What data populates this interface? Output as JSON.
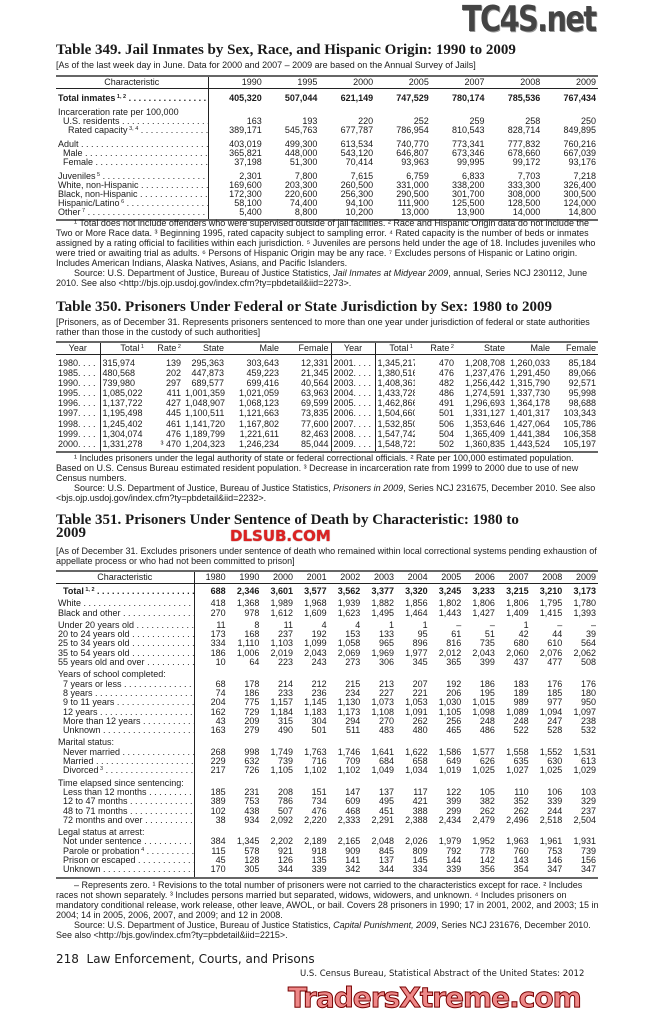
{
  "watermarks": {
    "top": "TC4S.net",
    "middle": "DLSUB.COM",
    "bottom": "TradersXtreme.com"
  },
  "t349": {
    "title": "Table 349. Jail Inmates by Sex, Race, and Hispanic Origin: 1990 to 2009",
    "subtitle": "[As of the last week day in June. Data for 2000 and 2007 – 2009 are based on the Annual Survey of Jails]",
    "columns": [
      "Characteristic",
      "1990",
      "1995",
      "2000",
      "2005",
      "2007",
      "2008",
      "2009"
    ],
    "groups": [
      [
        {
          "label": "Total inmates",
          "sup": "1, 2",
          "bold": true,
          "values": [
            "405,320",
            "507,044",
            "621,149",
            "747,529",
            "780,174",
            "785,536",
            "767,434"
          ]
        }
      ],
      [
        {
          "label": "Incarceration rate per 100,000",
          "values": []
        },
        {
          "label": "U.S. residents",
          "indent": 1,
          "values": [
            "163",
            "193",
            "220",
            "252",
            "259",
            "258",
            "250"
          ]
        },
        {
          "label": "Rated capacity",
          "sup": "3, 4",
          "indent": 2,
          "values": [
            "389,171",
            "545,763",
            "677,787",
            "786,954",
            "810,543",
            "828,714",
            "849,895"
          ]
        }
      ],
      [
        {
          "label": "Adult",
          "values": [
            "403,019",
            "499,300",
            "613,534",
            "740,770",
            "773,341",
            "777,832",
            "760,216"
          ]
        },
        {
          "label": "Male",
          "indent": 1,
          "values": [
            "365,821",
            "448,000",
            "543,120",
            "646,807",
            "673,346",
            "678,660",
            "667,039"
          ]
        },
        {
          "label": "Female",
          "indent": 1,
          "values": [
            "37,198",
            "51,300",
            "70,414",
            "93,963",
            "99,995",
            "99,172",
            "93,176"
          ]
        }
      ],
      [
        {
          "label": "Juveniles",
          "sup": "5",
          "values": [
            "2,301",
            "7,800",
            "7,615",
            "6,759",
            "6,833",
            "7,703",
            "7,218"
          ]
        },
        {
          "label": "White, non-Hispanic",
          "values": [
            "169,600",
            "203,300",
            "260,500",
            "331,000",
            "338,200",
            "333,300",
            "326,400"
          ]
        },
        {
          "label": "Black, non-Hispanic",
          "values": [
            "172,300",
            "220,600",
            "256,300",
            "290,500",
            "301,700",
            "308,000",
            "300,500"
          ]
        },
        {
          "label": "Hispanic/Latino",
          "sup": "6",
          "values": [
            "58,100",
            "74,400",
            "94,100",
            "111,900",
            "125,500",
            "128,500",
            "124,000"
          ]
        },
        {
          "label": "Other",
          "sup": "7",
          "values": [
            "5,400",
            "8,800",
            "10,200",
            "13,000",
            "13,900",
            "14,000",
            "14,800"
          ]
        }
      ]
    ],
    "footnotes": "¹ Total does not include offenders who were supervised outside of jail facilities. ² Race and Hispanic Origin data do not include the Two or More Race data. ³ Beginning 1995, rated capacity subject to sampling error. ⁴ Rated capacity is the number of beds or inmates assigned by a rating official to facilities within each jurisdiction. ⁵ Juveniles are persons held under the age of 18. Includes juveniles who were tried or awaiting trial as adults. ⁶ Persons of Hispanic Origin may be any race. ⁷ Excludes persons of Hispanic or Latino origin. Includes American Indians, Alaska Natives, Asians, and Pacific Islanders.",
    "source_pre": "Source: U.S. Department of Justice, Bureau of Justice Statistics, ",
    "source_pub": "Jail Inmates at Midyear 2009",
    "source_post": ", annual, Series NCJ 230112, June 2010. See also <http://bjs.ojp.usdoj.gov/index.cfm?ty=pbdetail&iid=2273>."
  },
  "t350": {
    "title": "Table 350. Prisoners Under Federal or State Jurisdiction by Sex: 1980 to 2009",
    "subtitle": "[Prisoners, as of December 31. Represents prisoners sentenced to more than one year under jurisdiction of federal or state authorities rather than those in the custody of such authorities]",
    "columns": [
      {
        "label": "Year"
      },
      {
        "label": "Total",
        "sup": "1"
      },
      {
        "label": "Rate",
        "sup": "2"
      },
      {
        "label": "State"
      },
      {
        "label": "Male"
      },
      {
        "label": "Female"
      }
    ],
    "left": [
      [
        "1980",
        "315,974",
        "139",
        "295,363",
        "303,643",
        "12,331"
      ],
      [
        "1985",
        "480,568",
        "202",
        "447,873",
        "459,223",
        "21,345"
      ],
      [
        "1990",
        "739,980",
        "297",
        "689,577",
        "699,416",
        "40,564"
      ],
      [
        "1995",
        "1,085,022",
        "411",
        "1,001,359",
        "1,021,059",
        "63,963"
      ],
      [
        "1996",
        "1,137,722",
        "427",
        "1,048,907",
        "1,068,123",
        "69,599"
      ],
      [
        "1997",
        "1,195,498",
        "445",
        "1,100,511",
        "1,121,663",
        "73,835"
      ],
      [
        "1998",
        "1,245,402",
        "461",
        "1,141,720",
        "1,167,802",
        "77,600"
      ],
      [
        "1999",
        "1,304,074",
        "476",
        "1,189,799",
        "1,221,611",
        "82,463"
      ],
      [
        "2000",
        "1,331,278",
        "³ 470",
        "1,204,323",
        "1,246,234",
        "85,044"
      ]
    ],
    "right": [
      [
        "2001",
        "1,345,217",
        "470",
        "1,208,708",
        "1,260,033",
        "85,184"
      ],
      [
        "2002",
        "1,380,516",
        "476",
        "1,237,476",
        "1,291,450",
        "89,066"
      ],
      [
        "2003",
        "1,408,361",
        "482",
        "1,256,442",
        "1,315,790",
        "92,571"
      ],
      [
        "2004",
        "1,433,728",
        "486",
        "1,274,591",
        "1,337,730",
        "95,998"
      ],
      [
        "2005",
        "1,462,866",
        "491",
        "1,296,693",
        "1,364,178",
        "98,688"
      ],
      [
        "2006",
        "1,504,660",
        "501",
        "1,331,127",
        "1,401,317",
        "103,343"
      ],
      [
        "2007",
        "1,532,850",
        "506",
        "1,353,646",
        "1,427,064",
        "105,786"
      ],
      [
        "2008",
        "1,547,742",
        "504",
        "1,365,409",
        "1,441,384",
        "106,358"
      ],
      [
        "2009",
        "1,548,721",
        "502",
        "1,360,835",
        "1,443,524",
        "105,197"
      ]
    ],
    "footnotes": "¹ Includes prisoners under the legal authority of state or federal correctional officials. ² Rate per 100,000 estimated population. Based on U.S. Census Bureau estimated resident population. ³ Decrease in incarceration rate from 1999 to 2000 due to use of new Census numbers.",
    "source_pre": "Source: U.S. Department of Justice, Bureau of Justice Statistics, ",
    "source_pub": "Prisoners in 2009",
    "source_post": ", Series NCJ 231675, December 2010. See also <bjs.ojp.usdoj.gov/index.cfm?ty=pbdetail&iid=2232>."
  },
  "t351": {
    "title": "Table 351. Prisoners Under Sentence of Death by Characteristic: 1980 to 2009",
    "subtitle": "[As of December 31. Excludes prisoners under sentence of death who remained within local correctional systems pending exhaustion of appellate process or who had not been committed to prison]",
    "columns": [
      "Characteristic",
      "1980",
      "1990",
      "2000",
      "2001",
      "2002",
      "2003",
      "2004",
      "2005",
      "2006",
      "2007",
      "2008",
      "2009"
    ],
    "groups": [
      [
        {
          "label": "Total",
          "sup": "1, 2",
          "bold": true,
          "indent": 1,
          "values": [
            "688",
            "2,346",
            "3,601",
            "3,577",
            "3,562",
            "3,377",
            "3,320",
            "3,245",
            "3,233",
            "3,215",
            "3,210",
            "3,173"
          ]
        }
      ],
      [
        {
          "label": "White",
          "values": [
            "418",
            "1,368",
            "1,989",
            "1,968",
            "1,939",
            "1,882",
            "1,856",
            "1,802",
            "1,806",
            "1,806",
            "1,795",
            "1,780"
          ]
        },
        {
          "label": "Black and other",
          "values": [
            "270",
            "978",
            "1,612",
            "1,609",
            "1,623",
            "1,495",
            "1,464",
            "1,443",
            "1,427",
            "1,409",
            "1,415",
            "1,393"
          ]
        }
      ],
      [
        {
          "label": "Under 20 years old",
          "values": [
            "11",
            "8",
            "11",
            "4",
            "4",
            "1",
            "1",
            "–",
            "–",
            "1",
            "–",
            "–"
          ]
        },
        {
          "label": "20 to 24 years old",
          "values": [
            "173",
            "168",
            "237",
            "192",
            "153",
            "133",
            "95",
            "61",
            "51",
            "42",
            "44",
            "39"
          ]
        },
        {
          "label": "25 to 34 years old",
          "values": [
            "334",
            "1,110",
            "1,103",
            "1,099",
            "1,058",
            "965",
            "896",
            "816",
            "735",
            "680",
            "610",
            "564"
          ]
        },
        {
          "label": "35 to 54 years old",
          "values": [
            "186",
            "1,006",
            "2,019",
            "2,043",
            "2,069",
            "1,969",
            "1,977",
            "2,012",
            "2,043",
            "2,060",
            "2,076",
            "2,062"
          ]
        },
        {
          "label": "55 years old and over",
          "values": [
            "10",
            "64",
            "223",
            "243",
            "273",
            "306",
            "345",
            "365",
            "399",
            "437",
            "477",
            "508"
          ]
        }
      ],
      [
        {
          "label": "Years of school completed:",
          "values": []
        },
        {
          "label": "7 years or less",
          "indent": 1,
          "values": [
            "68",
            "178",
            "214",
            "212",
            "215",
            "213",
            "207",
            "192",
            "186",
            "183",
            "176",
            "176"
          ]
        },
        {
          "label": "8 years",
          "indent": 1,
          "values": [
            "74",
            "186",
            "233",
            "236",
            "234",
            "227",
            "221",
            "206",
            "195",
            "189",
            "185",
            "180"
          ]
        },
        {
          "label": "9 to 11 years",
          "indent": 1,
          "values": [
            "204",
            "775",
            "1,157",
            "1,145",
            "1,130",
            "1,073",
            "1,053",
            "1,030",
            "1,015",
            "989",
            "977",
            "950"
          ]
        },
        {
          "label": "12 years",
          "indent": 1,
          "values": [
            "162",
            "729",
            "1,184",
            "1,183",
            "1,173",
            "1,108",
            "1,091",
            "1,105",
            "1,098",
            "1,089",
            "1,094",
            "1,097"
          ]
        },
        {
          "label": "More than 12 years",
          "indent": 1,
          "values": [
            "43",
            "209",
            "315",
            "304",
            "294",
            "270",
            "262",
            "256",
            "248",
            "248",
            "247",
            "238"
          ]
        },
        {
          "label": "Unknown",
          "indent": 1,
          "values": [
            "163",
            "279",
            "490",
            "501",
            "511",
            "483",
            "480",
            "465",
            "486",
            "522",
            "528",
            "532"
          ]
        }
      ],
      [
        {
          "label": "Marital status:",
          "values": []
        },
        {
          "label": "Never married",
          "indent": 1,
          "values": [
            "268",
            "998",
            "1,749",
            "1,763",
            "1,746",
            "1,641",
            "1,622",
            "1,586",
            "1,577",
            "1,558",
            "1,552",
            "1,531"
          ]
        },
        {
          "label": "Married",
          "indent": 1,
          "values": [
            "229",
            "632",
            "739",
            "716",
            "709",
            "684",
            "658",
            "649",
            "626",
            "635",
            "630",
            "613"
          ]
        },
        {
          "label": "Divorced",
          "sup": "3",
          "indent": 1,
          "values": [
            "217",
            "726",
            "1,105",
            "1,102",
            "1,102",
            "1,049",
            "1,034",
            "1,019",
            "1,025",
            "1,027",
            "1,025",
            "1,029"
          ]
        }
      ],
      [
        {
          "label": "Time elapsed since sentencing:",
          "values": []
        },
        {
          "label": "Less than 12 months",
          "indent": 1,
          "values": [
            "185",
            "231",
            "208",
            "151",
            "147",
            "137",
            "117",
            "122",
            "105",
            "110",
            "106",
            "103"
          ]
        },
        {
          "label": "12 to 47 months",
          "indent": 1,
          "values": [
            "389",
            "753",
            "786",
            "734",
            "609",
            "495",
            "421",
            "399",
            "382",
            "352",
            "339",
            "329"
          ]
        },
        {
          "label": "48 to 71 months",
          "indent": 1,
          "values": [
            "102",
            "438",
            "507",
            "476",
            "468",
            "451",
            "388",
            "299",
            "262",
            "262",
            "244",
            "237"
          ]
        },
        {
          "label": "72 months and over",
          "indent": 1,
          "values": [
            "38",
            "934",
            "2,092",
            "2,220",
            "2,333",
            "2,291",
            "2,388",
            "2,434",
            "2,479",
            "2,496",
            "2,518",
            "2,504"
          ]
        }
      ],
      [
        {
          "label": "Legal status at arrest:",
          "values": []
        },
        {
          "label": "Not under sentence",
          "indent": 1,
          "values": [
            "384",
            "1,345",
            "2,202",
            "2,189",
            "2,165",
            "2,048",
            "2,026",
            "1,979",
            "1,952",
            "1,963",
            "1,961",
            "1,931"
          ]
        },
        {
          "label": "Parole or probation",
          "sup": "4",
          "indent": 1,
          "values": [
            "115",
            "578",
            "921",
            "918",
            "909",
            "845",
            "809",
            "792",
            "778",
            "760",
            "753",
            "739"
          ]
        },
        {
          "label": "Prison or escaped",
          "indent": 1,
          "values": [
            "45",
            "128",
            "126",
            "135",
            "141",
            "137",
            "145",
            "144",
            "142",
            "143",
            "146",
            "156"
          ]
        },
        {
          "label": "Unknown",
          "indent": 1,
          "values": [
            "170",
            "305",
            "344",
            "339",
            "342",
            "344",
            "334",
            "339",
            "356",
            "354",
            "347",
            "347"
          ]
        }
      ]
    ],
    "footnotes": "– Represents zero. ¹ Revisions to the total number of prisoners were not carried to the characteristics except for race. ² Includes races not shown separately. ³ Includes persons married but separated, widows, widowers, and unknown. ⁴ Includes prisoners on mandatory conditional release, work release, other leave, AWOL, or bail. Covers 28 prisoners in 1990; 17 in 2001, 2002, and 2003; 15 in 2004; 14 in 2005, 2006, 2007, and 2009; and 12 in 2008.",
    "source_pre": "Source: U.S. Department of Justice, Bureau of Justice Statistics, ",
    "source_pub": "Capital Punishment, 2009",
    "source_post": ", Series NCJ 231676, December 2010. See also <http://bjs.gov/index.cfm?ty=pbdetail&iid=2215>."
  },
  "footer": {
    "page": "218",
    "section": "Law Enforcement, Courts, and Prisons",
    "source": "U.S. Census Bureau, Statistical Abstract of the United States: 2012"
  }
}
